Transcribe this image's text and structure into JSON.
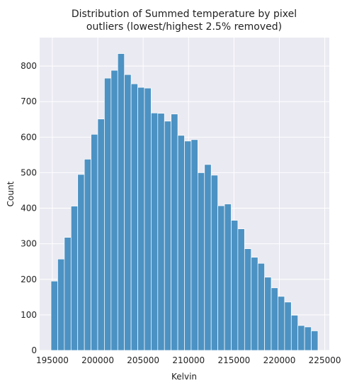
{
  "chart_data": {
    "type": "bar",
    "title_lines": [
      "Distribution of Summed temperature by pixel",
      "outliers (lowest/highest 2.5% removed)"
    ],
    "xlabel": "Kelvin",
    "ylabel": "Count",
    "xlim": [
      193600,
      225500
    ],
    "ylim": [
      0,
      880
    ],
    "x_ticks": [
      195000,
      200000,
      205000,
      210000,
      215000,
      220000,
      225000
    ],
    "x_tick_labels": [
      "195000",
      "200000",
      "205000",
      "210000",
      "215000",
      "220000",
      "225000"
    ],
    "y_ticks": [
      0,
      100,
      200,
      300,
      400,
      500,
      600,
      700,
      800
    ],
    "y_tick_labels": [
      "0",
      "100",
      "200",
      "300",
      "400",
      "500",
      "600",
      "700",
      "800"
    ],
    "grid": true,
    "bin_start": 194850,
    "bin_width": 735,
    "values": [
      195,
      257,
      318,
      406,
      495,
      538,
      608,
      651,
      766,
      788,
      835,
      776,
      750,
      740,
      738,
      668,
      667,
      645,
      665,
      605,
      589,
      593,
      500,
      523,
      493,
      407,
      412,
      366,
      342,
      286,
      262,
      245,
      206,
      176,
      152,
      136,
      99,
      70,
      66,
      55
    ],
    "colors": {
      "bar": "#4c92c3",
      "bar_edge": "#ffffff",
      "plot_background": "#eaeaf2",
      "grid": "#ffffff",
      "text": "#222222"
    }
  }
}
